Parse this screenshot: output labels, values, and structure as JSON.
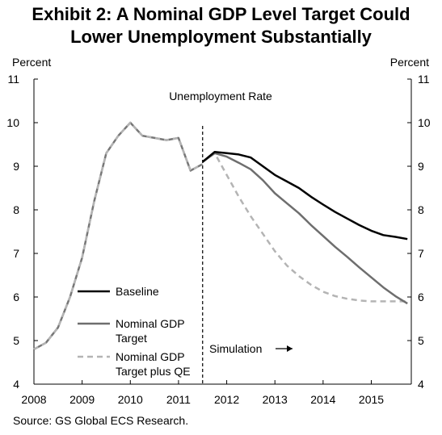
{
  "exhibit": {
    "title_line1": "Exhibit 2: A Nominal GDP Level Target Could",
    "title_line2": "Lower Unemployment Substantially"
  },
  "source": "Source: GS Global ECS Research.",
  "colors": {
    "baseline": "#000000",
    "ngdp_target": "#6e6e6e",
    "ngdp_target_qe": "#b4b4b4",
    "history": "#777777"
  },
  "chart_data": {
    "type": "line",
    "title": "Unemployment Rate",
    "ylabel_left": "Percent",
    "ylabel_right": "Percent",
    "xlim": [
      2008,
      2015.83
    ],
    "ylim": [
      4,
      11
    ],
    "x_ticks": [
      "2008",
      "2009",
      "2010",
      "2011",
      "2012",
      "2013",
      "2014",
      "2015"
    ],
    "y_ticks": [
      "4",
      "5",
      "6",
      "7",
      "8",
      "9",
      "10",
      "11"
    ],
    "grid": false,
    "legend_position": "bottom-left",
    "annotation": {
      "text": "Simulation",
      "x": 2011.5
    },
    "history": {
      "x": [
        2008.0,
        2008.25,
        2008.5,
        2008.75,
        2009.0,
        2009.25,
        2009.5,
        2009.75,
        2010.0,
        2010.25,
        2010.5,
        2010.75,
        2011.0,
        2011.25,
        2011.5
      ],
      "y": [
        4.8,
        4.95,
        5.3,
        6.0,
        6.9,
        8.2,
        9.3,
        9.7,
        10.0,
        9.7,
        9.65,
        9.6,
        9.65,
        8.9,
        9.05
      ]
    },
    "series": [
      {
        "name": "Baseline",
        "x": [
          2011.5,
          2011.75,
          2012.0,
          2012.25,
          2012.5,
          2012.75,
          2013.0,
          2013.25,
          2013.5,
          2013.75,
          2014.0,
          2014.25,
          2014.5,
          2014.75,
          2015.0,
          2015.25,
          2015.5,
          2015.75
        ],
        "y": [
          9.1,
          9.33,
          9.3,
          9.27,
          9.2,
          9.0,
          8.8,
          8.65,
          8.5,
          8.3,
          8.12,
          7.95,
          7.8,
          7.65,
          7.52,
          7.42,
          7.38,
          7.33
        ]
      },
      {
        "name": "Nominal GDP Target",
        "x": [
          2011.5,
          2011.75,
          2012.0,
          2012.25,
          2012.5,
          2012.75,
          2013.0,
          2013.25,
          2013.5,
          2013.75,
          2014.0,
          2014.25,
          2014.5,
          2014.75,
          2015.0,
          2015.25,
          2015.5,
          2015.75
        ],
        "y": [
          9.1,
          9.3,
          9.22,
          9.08,
          8.93,
          8.68,
          8.38,
          8.15,
          7.92,
          7.65,
          7.4,
          7.15,
          6.92,
          6.68,
          6.45,
          6.22,
          6.02,
          5.85
        ]
      },
      {
        "name": "Nominal GDP Target plus QE",
        "x": [
          2011.5,
          2011.75,
          2012.0,
          2012.25,
          2012.5,
          2012.75,
          2013.0,
          2013.25,
          2013.5,
          2013.75,
          2014.0,
          2014.25,
          2014.5,
          2014.75,
          2015.0,
          2015.25,
          2015.5,
          2015.75
        ],
        "y": [
          9.1,
          9.3,
          8.8,
          8.3,
          7.85,
          7.45,
          7.05,
          6.72,
          6.48,
          6.28,
          6.12,
          6.02,
          5.96,
          5.92,
          5.9,
          5.9,
          5.9,
          5.9
        ]
      }
    ],
    "legend": [
      {
        "line1": "Baseline",
        "line2": ""
      },
      {
        "line1": "Nominal GDP",
        "line2": "Target"
      },
      {
        "line1": "Nominal GDP",
        "line2": "Target plus QE"
      }
    ]
  }
}
